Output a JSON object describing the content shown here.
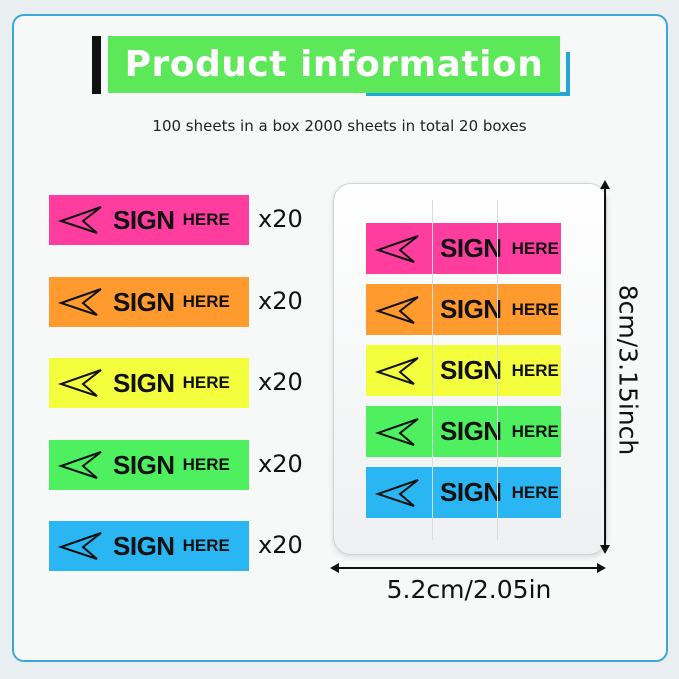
{
  "title": "Product information",
  "subtitle": "100 sheets in a box 2000 sheets in total 20 boxes",
  "tab_text": {
    "sign": "SIGN",
    "here": "HERE"
  },
  "tabs": [
    {
      "color": "#ff3d9f",
      "count": "x20"
    },
    {
      "color": "#ff9a2e",
      "count": "x20"
    },
    {
      "color": "#f3ff3c",
      "count": "x20"
    },
    {
      "color": "#4ef060",
      "count": "x20"
    },
    {
      "color": "#29b6f2",
      "count": "x20"
    }
  ],
  "dimensions": {
    "height": "8cm/3.15inch",
    "width": "5.2cm/2.05in"
  },
  "colors": {
    "banner": "#5de85a",
    "accent": "#22a6d6"
  }
}
